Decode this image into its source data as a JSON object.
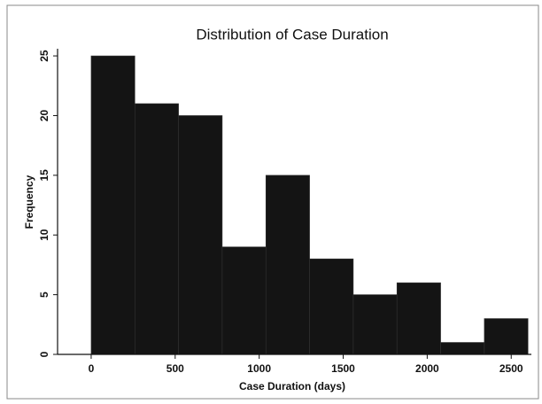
{
  "chart_data": {
    "type": "histogram",
    "title": "Distribution of Case Duration",
    "x_label": "Case Duration (days)",
    "y_label": "Frequency",
    "bins": [
      0,
      260,
      520,
      780,
      1040,
      1300,
      1560,
      1820,
      2080,
      2340,
      2600
    ],
    "values": [
      25,
      21,
      20,
      9,
      15,
      8,
      5,
      6,
      1,
      3
    ],
    "color": "#141414",
    "xlim": [
      -200,
      2620
    ],
    "xticks": [
      0,
      500,
      1000,
      1500,
      2000,
      2500
    ],
    "ylim": [
      0,
      25.6
    ],
    "yticks": [
      0,
      5,
      10,
      15,
      20,
      25
    ]
  }
}
